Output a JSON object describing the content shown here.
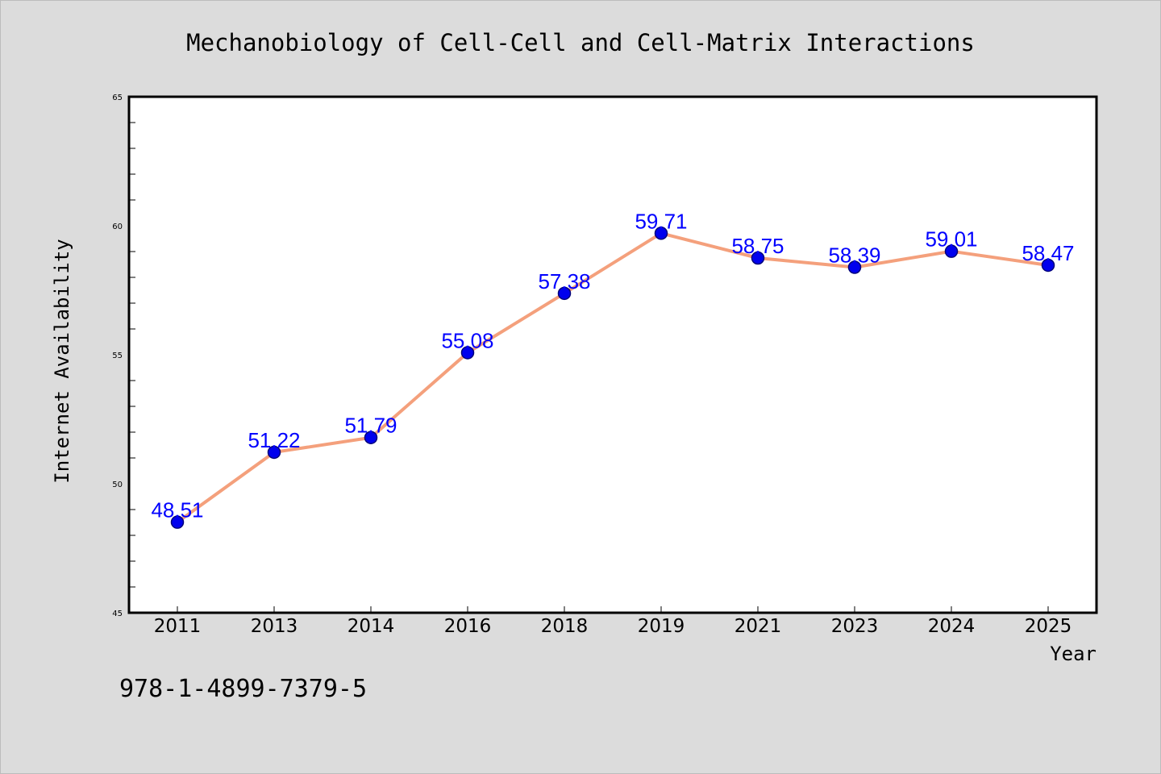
{
  "chart_data": {
    "type": "line",
    "title": "Mechanobiology of Cell-Cell and Cell-Matrix Interactions",
    "xlabel": "Year",
    "ylabel": "Internet Availability",
    "categories": [
      "2011",
      "2013",
      "2014",
      "2016",
      "2018",
      "2019",
      "2021",
      "2023",
      "2024",
      "2025"
    ],
    "series": [
      {
        "values": [
          48.51,
          51.22,
          51.79,
          55.08,
          57.38,
          59.71,
          58.75,
          58.39,
          59.01,
          58.47
        ],
        "data_labels": [
          "48.51",
          "51.22",
          "51.79",
          "55.08",
          "57.38",
          "59.71",
          "58.75",
          "58.39",
          "59.01",
          "58.47"
        ]
      }
    ],
    "ylim": [
      45,
      65
    ],
    "yticks": [
      "45",
      "50",
      "55",
      "60",
      "65"
    ],
    "grid": false,
    "colors": {
      "line": "#f4a07c",
      "marker_fill": "#0000ee",
      "marker_edge": "#00007a",
      "data_label": "#0000ff",
      "plot_background": "#ffffff",
      "figure_background": "#dcdcdc"
    }
  },
  "footer": {
    "isbn": "978-1-4899-7379-5"
  }
}
